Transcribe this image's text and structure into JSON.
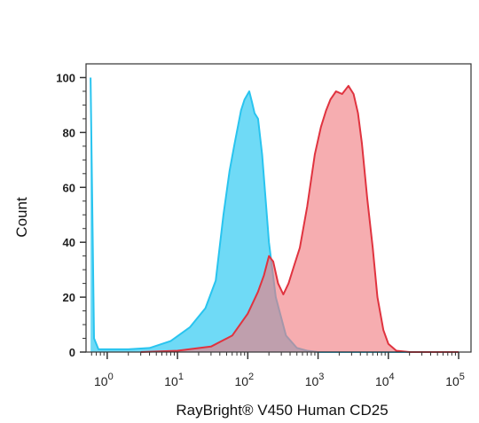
{
  "chart_data": {
    "type": "area",
    "title": "",
    "xlabel": "RayBright® V450 Human CD25",
    "ylabel": "Count",
    "x_scale": "log",
    "xlim": [
      0.5,
      150000
    ],
    "ylim": [
      0,
      105
    ],
    "x_ticks": [
      {
        "base": "10",
        "exp": "0",
        "value": 1
      },
      {
        "base": "10",
        "exp": "1",
        "value": 10
      },
      {
        "base": "10",
        "exp": "2",
        "value": 100
      },
      {
        "base": "10",
        "exp": "3",
        "value": 1000
      },
      {
        "base": "10",
        "exp": "4",
        "value": 10000
      },
      {
        "base": "10",
        "exp": "5",
        "value": 100000
      }
    ],
    "y_ticks": [
      "0",
      "20",
      "40",
      "60",
      "80",
      "100"
    ],
    "series": [
      {
        "color": "#29c4ef",
        "fill": "#5fd6f5",
        "points": [
          [
            0.58,
            100
          ],
          [
            0.65,
            5
          ],
          [
            0.75,
            1
          ],
          [
            1,
            1
          ],
          [
            2,
            1
          ],
          [
            4,
            1.5
          ],
          [
            8,
            4
          ],
          [
            15,
            9
          ],
          [
            25,
            16
          ],
          [
            35,
            26
          ],
          [
            45,
            50
          ],
          [
            55,
            66
          ],
          [
            65,
            76
          ],
          [
            80,
            88
          ],
          [
            90,
            92
          ],
          [
            105,
            95
          ],
          [
            115,
            91
          ],
          [
            125,
            87
          ],
          [
            140,
            85
          ],
          [
            160,
            72
          ],
          [
            180,
            55
          ],
          [
            200,
            40
          ],
          [
            250,
            20
          ],
          [
            350,
            6
          ],
          [
            500,
            1.5
          ],
          [
            700,
            0.5
          ],
          [
            1000,
            0
          ],
          [
            100000,
            0
          ]
        ]
      },
      {
        "color": "#e0333f",
        "fill": "#f07a7f",
        "points": [
          [
            3,
            0
          ],
          [
            10,
            0.5
          ],
          [
            30,
            2
          ],
          [
            60,
            6
          ],
          [
            100,
            14
          ],
          [
            140,
            22
          ],
          [
            170,
            28
          ],
          [
            200,
            35
          ],
          [
            230,
            33
          ],
          [
            270,
            25
          ],
          [
            320,
            21
          ],
          [
            380,
            25
          ],
          [
            450,
            31
          ],
          [
            550,
            38
          ],
          [
            700,
            53
          ],
          [
            900,
            72
          ],
          [
            1100,
            82
          ],
          [
            1300,
            88
          ],
          [
            1500,
            92
          ],
          [
            1800,
            95
          ],
          [
            2200,
            94
          ],
          [
            2700,
            97
          ],
          [
            3200,
            94
          ],
          [
            3700,
            87
          ],
          [
            4200,
            76
          ],
          [
            5000,
            56
          ],
          [
            6000,
            38
          ],
          [
            7000,
            20
          ],
          [
            8500,
            8
          ],
          [
            10000,
            3
          ],
          [
            13000,
            0.5
          ],
          [
            20000,
            0
          ],
          [
            100000,
            0
          ]
        ]
      }
    ]
  }
}
